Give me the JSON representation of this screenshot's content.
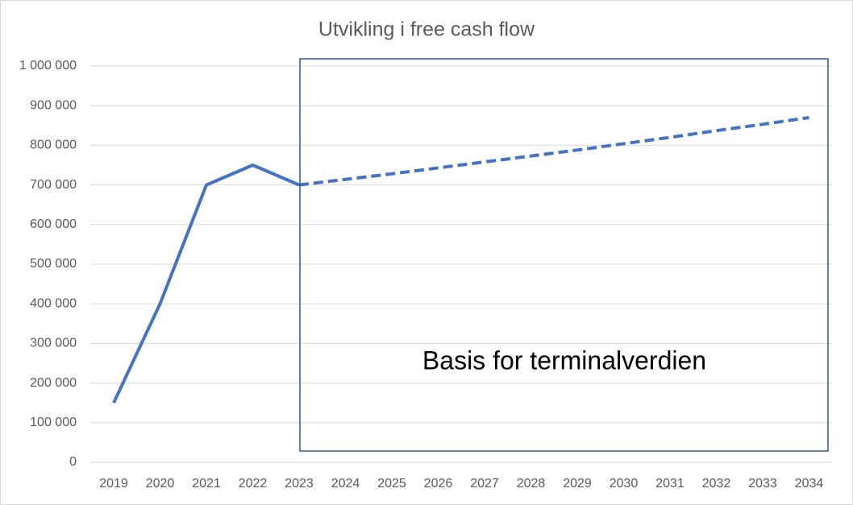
{
  "chart_data": {
    "type": "line",
    "title": "Utvikling i free cash flow",
    "categories": [
      "2019",
      "2020",
      "2021",
      "2022",
      "2023",
      "2024",
      "2025",
      "2026",
      "2027",
      "2028",
      "2029",
      "2030",
      "2031",
      "2032",
      "2033",
      "2034"
    ],
    "series": [
      {
        "color": "#4472c4",
        "dash": false,
        "values": [
          150000,
          400000,
          700000,
          750000,
          700000,
          null,
          null,
          null,
          null,
          null,
          null,
          null,
          null,
          null,
          null,
          null
        ]
      },
      {
        "color": "#4472c4",
        "dash": true,
        "values": [
          null,
          null,
          null,
          null,
          700000,
          714000,
          728000,
          743000,
          758000,
          773000,
          788000,
          804000,
          820000,
          837000,
          853000,
          870000
        ]
      }
    ],
    "ylim": [
      0,
      1000000
    ],
    "yticks": [
      0,
      {
        "value": 100000,
        "label": "100 000"
      },
      {
        "value": 200000,
        "label": "200 000"
      },
      {
        "value": 300000,
        "label": "300 000"
      },
      {
        "value": 400000,
        "label": "400 000"
      },
      {
        "value": 500000,
        "label": "500 000"
      },
      {
        "value": 600000,
        "label": "600 000"
      },
      {
        "value": 700000,
        "label": "700 000"
      },
      {
        "value": 800000,
        "label": "800 000"
      },
      {
        "value": 900000,
        "label": "900 000"
      },
      {
        "value": 1000000,
        "label": "1 000 000"
      }
    ],
    "grid": true,
    "annotation": "Basis for terminalverdien"
  }
}
